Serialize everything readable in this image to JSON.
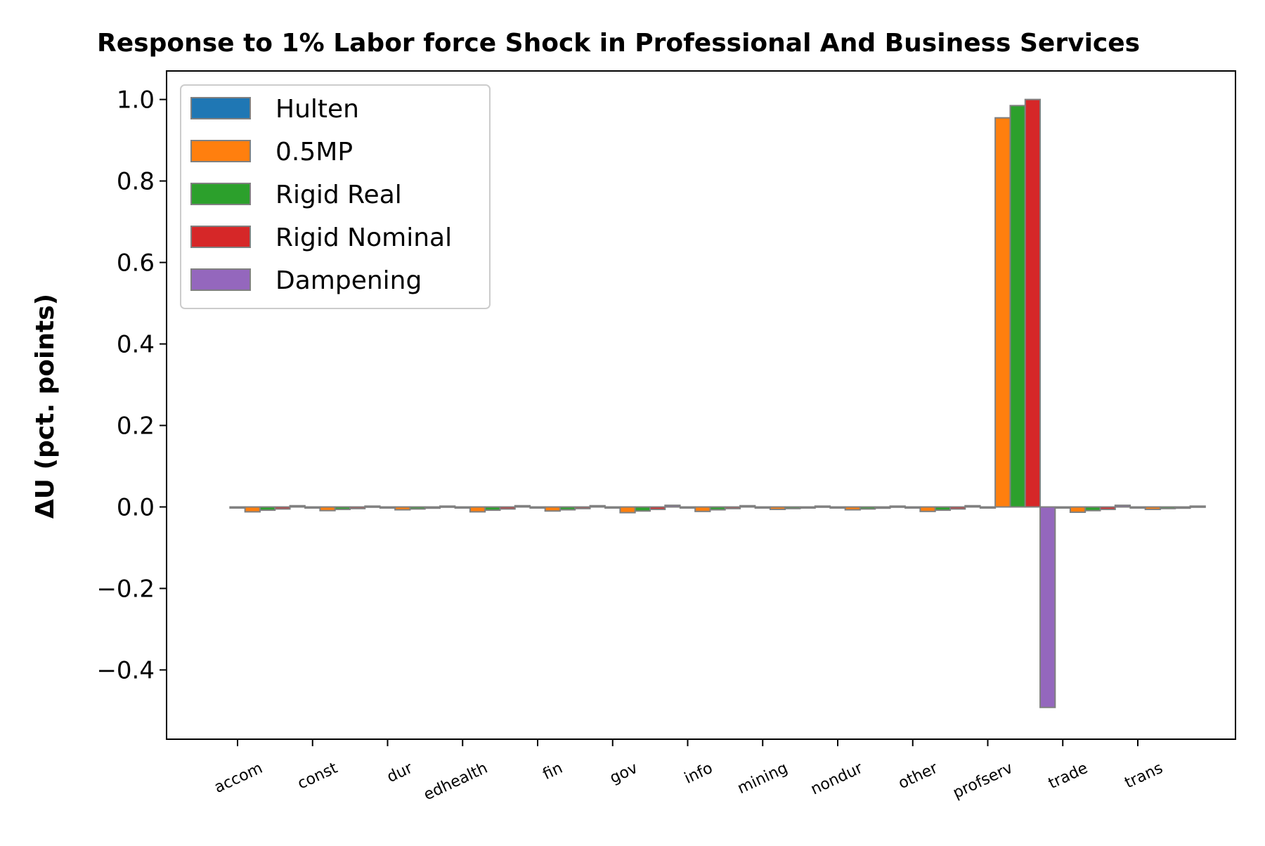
{
  "chart_data": {
    "type": "bar",
    "title": "Response to 1% Labor force Shock in Professional And Business Services",
    "xlabel": "",
    "ylabel": "ΔU  (pct. points)",
    "ylim": [
      -0.57,
      1.07
    ],
    "yticks": [
      -0.4,
      -0.2,
      0.0,
      0.2,
      0.4,
      0.6,
      0.8,
      1.0
    ],
    "ytick_labels": [
      "−0.4",
      "−0.2",
      "0.0",
      "0.2",
      "0.4",
      "0.6",
      "0.8",
      "1.0"
    ],
    "categories": [
      "accom",
      "const",
      "dur",
      "edhealth",
      "fin",
      "gov",
      "info",
      "mining",
      "nondur",
      "other",
      "profserv",
      "trade",
      "trans"
    ],
    "series": [
      {
        "name": "Hulten",
        "color": "#1f77b4",
        "values": [
          0,
          0,
          0,
          0,
          0,
          0,
          0,
          0,
          0,
          0,
          0,
          0,
          0
        ]
      },
      {
        "name": "0.5MP",
        "color": "#ff7f0e",
        "values": [
          -0.012,
          -0.009,
          -0.007,
          -0.012,
          -0.01,
          -0.014,
          -0.011,
          -0.006,
          -0.007,
          -0.011,
          0.955,
          -0.013,
          -0.006
        ]
      },
      {
        "name": "Rigid Real",
        "color": "#2ca02c",
        "values": [
          -0.008,
          -0.006,
          -0.005,
          -0.008,
          -0.007,
          -0.01,
          -0.007,
          -0.004,
          -0.005,
          -0.008,
          0.985,
          -0.009,
          -0.004
        ]
      },
      {
        "name": "Rigid Nominal",
        "color": "#d62728",
        "values": [
          -0.005,
          -0.004,
          -0.003,
          -0.005,
          -0.004,
          -0.006,
          -0.004,
          -0.002,
          -0.003,
          -0.005,
          1.0,
          -0.006,
          -0.003
        ]
      },
      {
        "name": "Dampening",
        "color": "#9467bd",
        "values": [
          0.003,
          0.002,
          0.002,
          0.003,
          0.003,
          0.004,
          0.003,
          0.002,
          0.002,
          0.003,
          -0.492,
          0.004,
          0.002
        ]
      }
    ],
    "bar_edge_color": "#808080",
    "grid": false,
    "legend_position": "upper-left"
  }
}
